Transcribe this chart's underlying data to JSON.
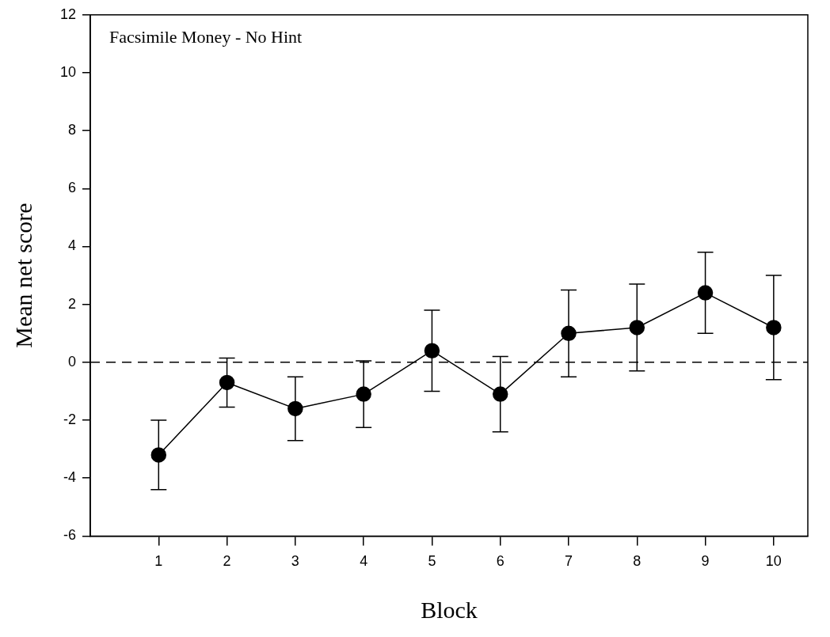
{
  "chart_data": {
    "type": "line",
    "xlabel": "Block",
    "ylabel": "Mean net score",
    "annotations": [
      "Facsimile Money - No Hint"
    ],
    "x": [
      1,
      2,
      3,
      4,
      5,
      6,
      7,
      8,
      9,
      10
    ],
    "series": [
      {
        "color": "#000000",
        "values": [
          -3.2,
          -0.7,
          -1.6,
          -1.1,
          0.4,
          -1.1,
          1.0,
          1.2,
          2.4,
          1.2
        ],
        "errors": [
          1.2,
          0.85,
          1.1,
          1.15,
          1.4,
          1.3,
          1.5,
          1.5,
          1.4,
          1.8
        ]
      }
    ],
    "xlim": [
      0,
      10.5
    ],
    "xticks": [
      1,
      2,
      3,
      4,
      5,
      6,
      7,
      8,
      9,
      10
    ],
    "ylim": [
      -6,
      12
    ],
    "yticks": [
      -6,
      -4,
      -2,
      0,
      2,
      4,
      6,
      8,
      10,
      12
    ],
    "ref_lines": [
      {
        "axis": "y",
        "value": 0,
        "line_style": "dashed",
        "color": "#000000"
      }
    ],
    "marker": "circle",
    "line_style": "solid",
    "grid": false,
    "legend": false
  }
}
